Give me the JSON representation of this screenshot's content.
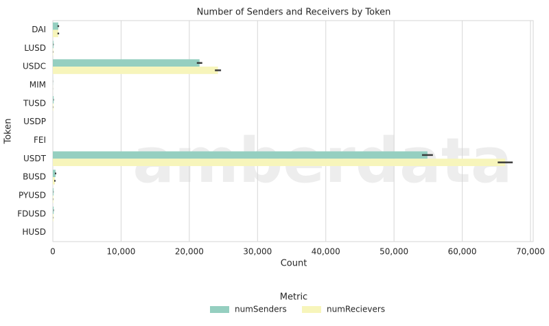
{
  "chart_data": {
    "type": "barh",
    "title": "Number of Senders and Receivers by Token",
    "watermark": "amberdata",
    "x_label": "Count",
    "y_label": "Token",
    "legend_title": "Metric",
    "legend_position": "bottom",
    "categories": [
      "DAI",
      "LUSD",
      "USDC",
      "MIM",
      "TUSD",
      "USDP",
      "FEI",
      "USDT",
      "BUSD",
      "PYUSD",
      "FDUSD",
      "HUSD"
    ],
    "series": [
      {
        "name": "numSenders",
        "color": "#95cfc0",
        "values": [
          800,
          100,
          21500,
          20,
          120,
          0,
          0,
          54900,
          400,
          100,
          120,
          0
        ],
        "errors": [
          120,
          30,
          400,
          10,
          30,
          0,
          0,
          800,
          100,
          20,
          30,
          0
        ]
      },
      {
        "name": "numRecievers",
        "color": "#f7f5bb",
        "values": [
          800,
          60,
          24200,
          10,
          80,
          0,
          0,
          66300,
          300,
          80,
          90,
          0
        ],
        "errors": [
          120,
          20,
          450,
          5,
          20,
          0,
          0,
          1100,
          100,
          20,
          20,
          0
        ]
      }
    ],
    "xlim": [
      0,
      70400
    ],
    "xticks": [
      0,
      {
        "value": 10000,
        "label": "10,000"
      },
      {
        "value": 20000,
        "label": "20,000"
      },
      {
        "value": 30000,
        "label": "30,000"
      },
      {
        "value": 40000,
        "label": "40,000"
      },
      {
        "value": 50000,
        "label": "50,000"
      },
      {
        "value": 60000,
        "label": "60,000"
      },
      {
        "value": 70000,
        "label": "70,000"
      }
    ],
    "grid": true
  }
}
